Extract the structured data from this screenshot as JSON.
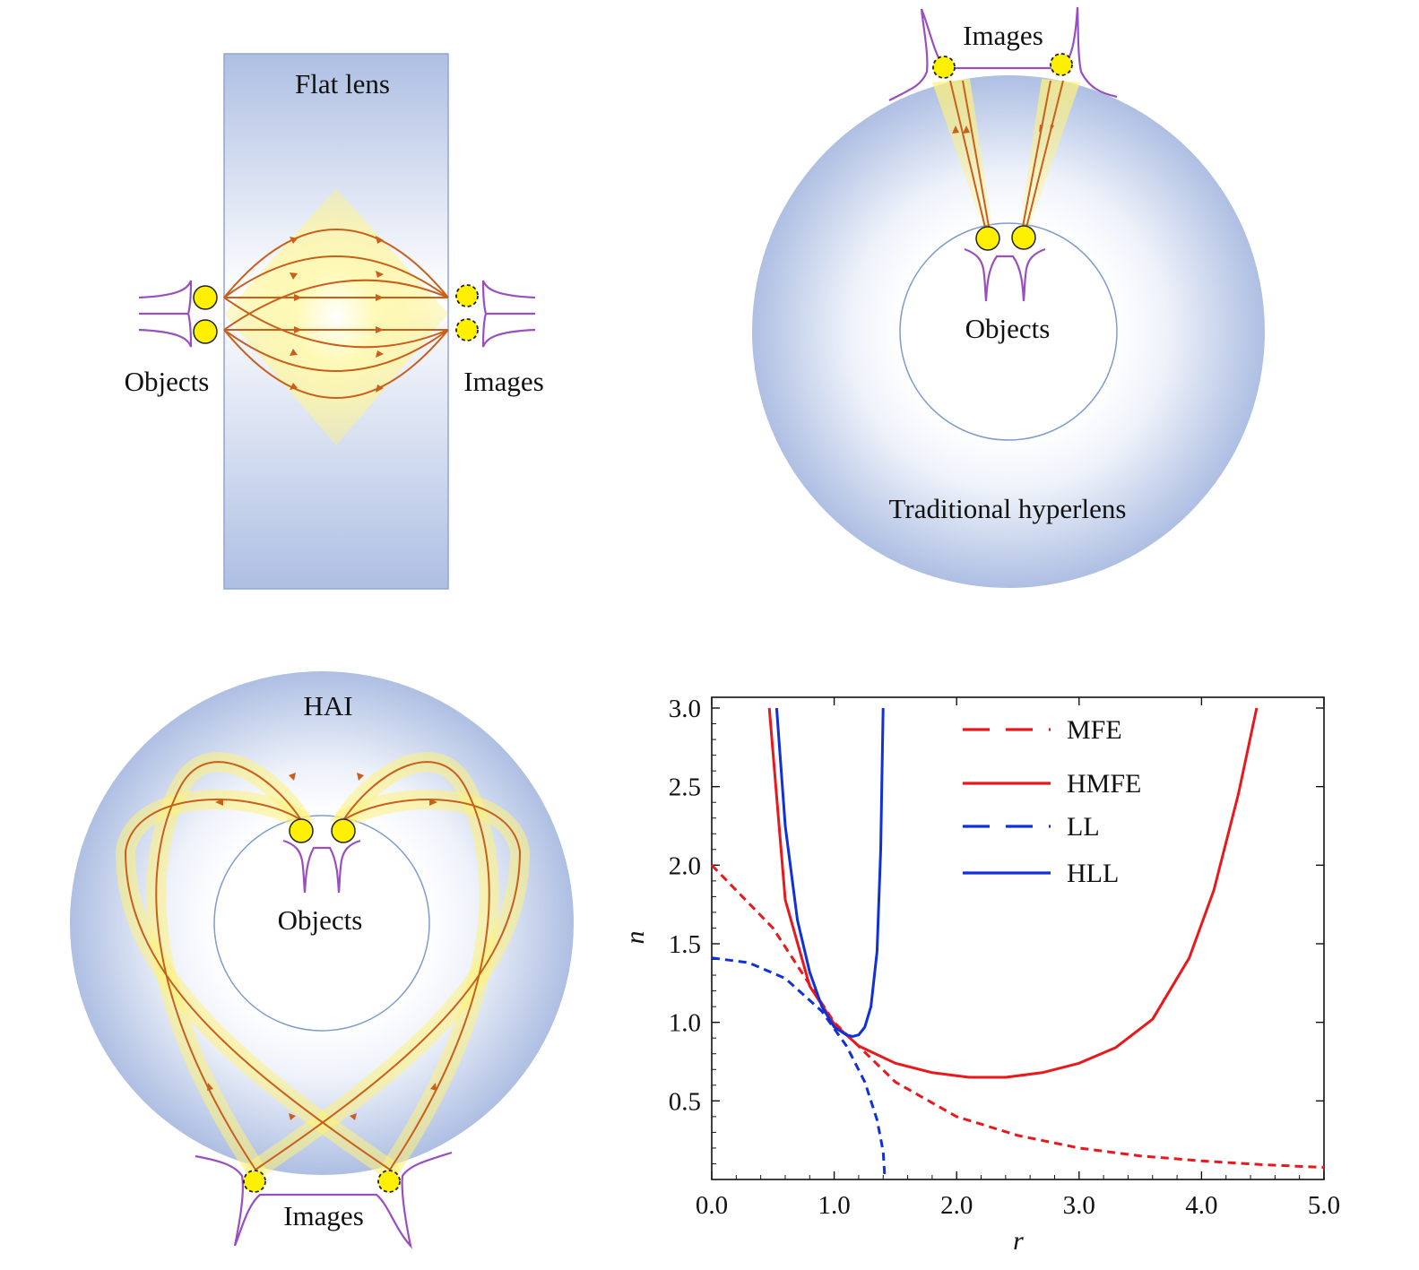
{
  "panels": {
    "flat_lens": {
      "title": "Flat lens",
      "objects_label": "Objects",
      "images_label": "Images"
    },
    "hyperlens": {
      "title": "Traditional hyperlens",
      "objects_label": "Objects",
      "images_label": "Images"
    },
    "hai": {
      "title": "HAI",
      "objects_label": "Objects",
      "images_label": "Images"
    }
  },
  "colors": {
    "lens_blue": "#aebfe3",
    "ray": "#c8601c",
    "glow": "#fff27a",
    "dot": "#ffef00",
    "profile": "#9a4fbf",
    "mfe": "#e8191c",
    "ll": "#1030d8"
  },
  "chart_data": {
    "type": "line",
    "xlabel": "r",
    "ylabel": "n",
    "xlim": [
      0,
      5
    ],
    "ylim": [
      0,
      3
    ],
    "x_ticks": [
      "0.0",
      "1.0",
      "2.0",
      "3.0",
      "4.0",
      "5.0"
    ],
    "y_ticks": [
      "0.5",
      "1.0",
      "1.5",
      "2.0",
      "2.5",
      "3.0"
    ],
    "legend_position": "top-right",
    "series": [
      {
        "name": "MFE",
        "color": "#e8191c",
        "style": "dashed",
        "x": [
          0.0,
          0.5,
          1.0,
          1.5,
          2.0,
          2.5,
          3.0,
          3.5,
          4.0,
          4.5,
          5.0
        ],
        "y": [
          2.0,
          1.6,
          1.0,
          0.62,
          0.4,
          0.28,
          0.2,
          0.15,
          0.118,
          0.094,
          0.077
        ]
      },
      {
        "name": "HMFE",
        "color": "#e8191c",
        "style": "solid",
        "x": [
          0.47,
          0.6,
          0.8,
          1.0,
          1.2,
          1.5,
          1.8,
          2.1,
          2.4,
          2.7,
          3.0,
          3.3,
          3.6,
          3.9,
          4.1,
          4.3,
          4.45
        ],
        "y": [
          3.0,
          1.78,
          1.23,
          0.99,
          0.85,
          0.74,
          0.68,
          0.65,
          0.65,
          0.68,
          0.74,
          0.84,
          1.02,
          1.41,
          1.84,
          2.45,
          3.0
        ]
      },
      {
        "name": "LL",
        "color": "#1030d8",
        "style": "dashed",
        "x": [
          0.0,
          0.3,
          0.6,
          0.9,
          1.1,
          1.25,
          1.35,
          1.4,
          1.414
        ],
        "y": [
          1.41,
          1.38,
          1.28,
          1.07,
          0.85,
          0.62,
          0.38,
          0.18,
          0.0
        ]
      },
      {
        "name": "HLL",
        "color": "#1030d8",
        "style": "solid",
        "x": [
          0.53,
          0.6,
          0.7,
          0.8,
          0.9,
          1.0,
          1.1,
          1.15,
          1.2,
          1.25,
          1.3,
          1.35,
          1.38,
          1.4
        ],
        "y": [
          3.0,
          2.25,
          1.65,
          1.32,
          1.1,
          0.97,
          0.92,
          0.91,
          0.92,
          0.97,
          1.1,
          1.45,
          2.1,
          3.0
        ]
      }
    ]
  }
}
